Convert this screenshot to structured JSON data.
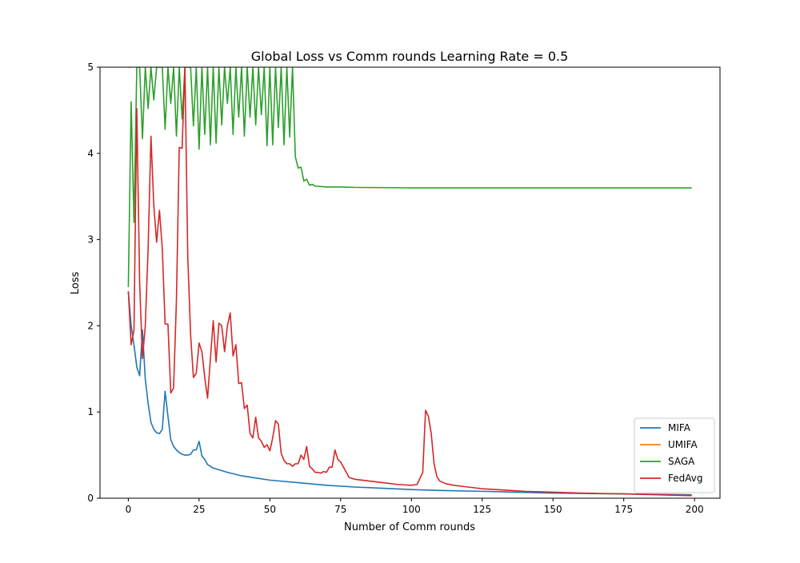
{
  "chart_data": {
    "type": "line",
    "title": "Global Loss vs Comm rounds Learning Rate = 0.5",
    "xlabel": "Number of Comm rounds",
    "ylabel": "Loss",
    "xlim": [
      -10,
      209
    ],
    "ylim": [
      0,
      5
    ],
    "xticks": [
      0,
      25,
      50,
      75,
      100,
      125,
      150,
      175,
      200
    ],
    "yticks": [
      0,
      1,
      2,
      3,
      4,
      5
    ],
    "grid": false,
    "legend_position": "lower-right",
    "series": [
      {
        "name": "MIFA",
        "color": "#1f77b4",
        "x": [
          0,
          1,
          2,
          3,
          4,
          5,
          6,
          7,
          8,
          9,
          10,
          11,
          12,
          13,
          14,
          15,
          16,
          17,
          18,
          19,
          20,
          21,
          22,
          23,
          24,
          25,
          26,
          27,
          28,
          30,
          35,
          40,
          45,
          50,
          60,
          70,
          80,
          90,
          100,
          110,
          125,
          150,
          175,
          199
        ],
        "y": [
          2.4,
          2.0,
          1.78,
          1.52,
          1.42,
          1.95,
          1.38,
          1.1,
          0.88,
          0.8,
          0.76,
          0.75,
          0.8,
          1.24,
          0.95,
          0.68,
          0.6,
          0.56,
          0.53,
          0.51,
          0.5,
          0.5,
          0.51,
          0.56,
          0.56,
          0.66,
          0.49,
          0.45,
          0.39,
          0.35,
          0.3,
          0.26,
          0.235,
          0.21,
          0.18,
          0.15,
          0.13,
          0.115,
          0.1,
          0.09,
          0.08,
          0.06,
          0.05,
          0.04
        ]
      },
      {
        "name": "UMIFA",
        "color": "#ff7f0e",
        "x": [
          0,
          0.5,
          1
        ],
        "y": [
          5,
          5,
          5
        ]
      },
      {
        "name": "SAGA",
        "color": "#2ca02c",
        "x": [
          0,
          1,
          2,
          3,
          4,
          5,
          6,
          7,
          8,
          9,
          10,
          11,
          12,
          13,
          14,
          15,
          16,
          17,
          18,
          19,
          20,
          21,
          22,
          23,
          24,
          25,
          26,
          27,
          28,
          29,
          30,
          31,
          32,
          33,
          34,
          35,
          36,
          37,
          38,
          39,
          40,
          41,
          42,
          43,
          44,
          45,
          46,
          47,
          48,
          49,
          50,
          51,
          52,
          53,
          54,
          55,
          56,
          57,
          58,
          59,
          60,
          61,
          62,
          63,
          64,
          65,
          66,
          67,
          68,
          70,
          75,
          80,
          100,
          150,
          199
        ],
        "y": [
          2.45,
          4.6,
          3.2,
          5,
          5,
          4.17,
          5,
          4.52,
          5,
          4.62,
          5,
          5,
          5,
          4.28,
          5,
          4.58,
          5,
          4.2,
          5,
          4.4,
          5,
          5,
          5,
          4.32,
          5,
          4.05,
          5,
          4.22,
          5,
          4.1,
          5,
          4.12,
          5,
          4.33,
          5,
          4.58,
          5,
          4.22,
          5,
          4.42,
          5,
          4.2,
          5,
          4.42,
          5,
          4.33,
          5,
          4.45,
          5,
          4.09,
          5,
          4.1,
          5,
          4.3,
          5,
          4.1,
          5,
          4.19,
          5,
          3.96,
          3.83,
          3.84,
          3.68,
          3.7,
          3.63,
          3.64,
          3.62,
          3.62,
          3.615,
          3.61,
          3.61,
          3.605,
          3.6,
          3.6,
          3.6
        ]
      },
      {
        "name": "FedAvg",
        "color": "#d62728",
        "x": [
          0,
          1,
          2,
          3,
          4,
          5,
          6,
          7,
          8,
          9,
          10,
          11,
          12,
          13,
          14,
          15,
          16,
          17,
          18,
          19,
          20,
          21,
          22,
          23,
          24,
          25,
          26,
          27,
          28,
          29,
          30,
          31,
          32,
          33,
          34,
          35,
          36,
          37,
          38,
          39,
          40,
          41,
          42,
          43,
          44,
          45,
          46,
          47,
          48,
          49,
          50,
          51,
          52,
          53,
          54,
          55,
          56,
          57,
          58,
          59,
          60,
          61,
          62,
          63,
          64,
          65,
          66,
          67,
          68,
          69,
          70,
          71,
          72,
          73,
          74,
          75,
          76,
          77,
          78,
          80,
          85,
          90,
          95,
          100,
          102,
          104,
          105,
          106,
          107,
          108,
          109,
          110,
          112,
          115,
          120,
          125,
          130,
          140,
          150,
          160,
          175,
          199
        ],
        "y": [
          2.4,
          1.78,
          1.95,
          4.52,
          2.5,
          1.62,
          2.0,
          2.9,
          4.2,
          3.4,
          2.97,
          3.34,
          2.9,
          2.02,
          2.02,
          1.22,
          1.28,
          2.3,
          4.07,
          4.06,
          5.0,
          2.8,
          1.9,
          1.4,
          1.45,
          1.8,
          1.7,
          1.4,
          1.16,
          1.62,
          2.06,
          1.58,
          2.03,
          2.0,
          1.7,
          2.0,
          2.15,
          1.65,
          1.78,
          1.33,
          1.34,
          1.04,
          1.08,
          0.75,
          0.7,
          0.94,
          0.7,
          0.66,
          0.59,
          0.62,
          0.55,
          0.7,
          0.9,
          0.86,
          0.52,
          0.44,
          0.4,
          0.4,
          0.37,
          0.4,
          0.4,
          0.5,
          0.45,
          0.6,
          0.37,
          0.34,
          0.3,
          0.3,
          0.29,
          0.31,
          0.3,
          0.36,
          0.36,
          0.56,
          0.45,
          0.42,
          0.36,
          0.3,
          0.24,
          0.22,
          0.2,
          0.18,
          0.16,
          0.15,
          0.16,
          0.3,
          1.02,
          0.95,
          0.75,
          0.4,
          0.25,
          0.2,
          0.17,
          0.15,
          0.13,
          0.11,
          0.1,
          0.08,
          0.07,
          0.06,
          0.05,
          0.03
        ]
      }
    ]
  }
}
